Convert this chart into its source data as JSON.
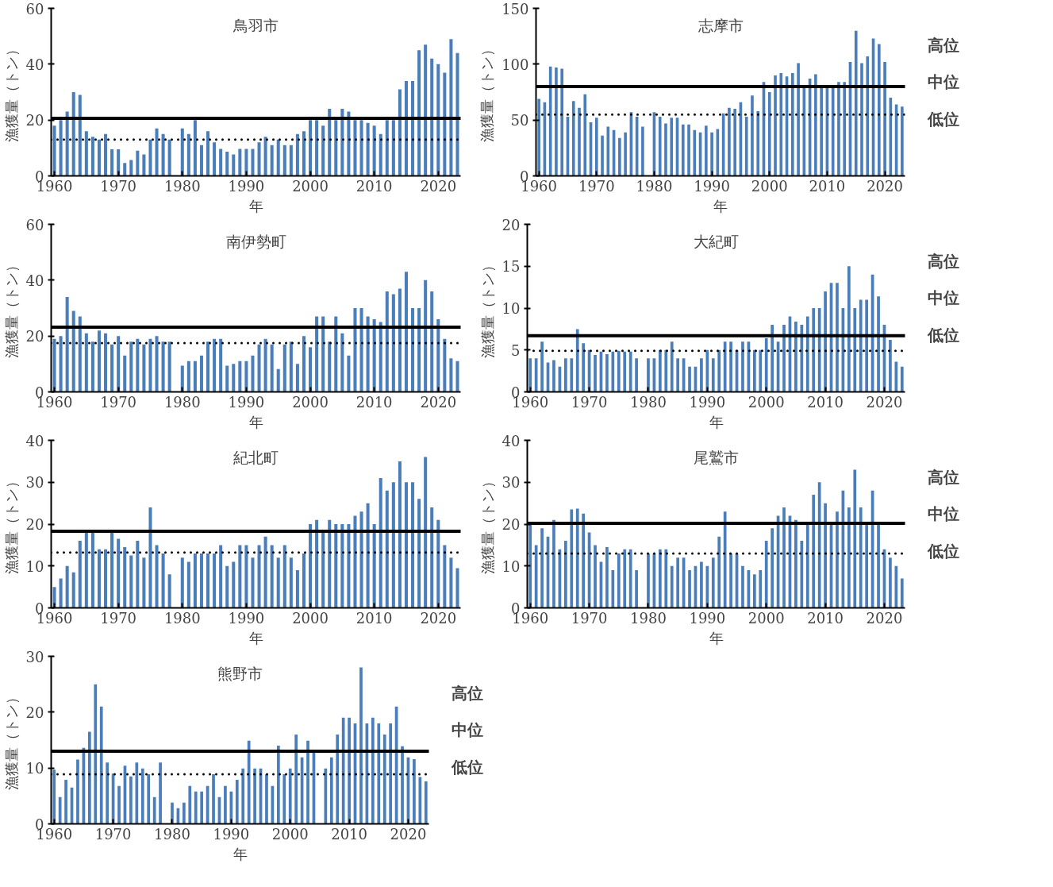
{
  "chart_data": [
    {
      "type": "bar",
      "title": "鳥羽市",
      "xlabel": "年",
      "ylabel": "漁獲量（トン）",
      "color": "#4a7ebb",
      "xlim": [
        1959.5,
        2023.5
      ],
      "xticks": [
        1960,
        1970,
        1980,
        1990,
        2000,
        2010,
        2020
      ],
      "ylim": [
        0,
        60
      ],
      "yticks": [
        0,
        20,
        40,
        60
      ],
      "x": [
        1960,
        1961,
        1962,
        1963,
        1964,
        1965,
        1966,
        1967,
        1968,
        1969,
        1970,
        1971,
        1972,
        1973,
        1974,
        1975,
        1976,
        1977,
        1978,
        1979,
        1980,
        1981,
        1982,
        1983,
        1984,
        1985,
        1986,
        1987,
        1988,
        1989,
        1990,
        1991,
        1992,
        1993,
        1994,
        1995,
        1996,
        1997,
        1998,
        1999,
        2000,
        2001,
        2002,
        2003,
        2004,
        2005,
        2006,
        2007,
        2008,
        2009,
        2010,
        2011,
        2012,
        2013,
        2014,
        2015,
        2016,
        2017,
        2018,
        2019,
        2020,
        2021,
        2022,
        2023
      ],
      "values": [
        18,
        20,
        23,
        30,
        29,
        16,
        14,
        13,
        15,
        9.5,
        9.5,
        4.6,
        5.7,
        9,
        7.7,
        13,
        17,
        15,
        13,
        null,
        17,
        15,
        20,
        11,
        16,
        12,
        9.7,
        8.7,
        7.7,
        9.7,
        9.7,
        9.7,
        12,
        14,
        11,
        13,
        11,
        11,
        15,
        16,
        20,
        20,
        18,
        24,
        20,
        24,
        23,
        20,
        20,
        19,
        18,
        15,
        20,
        20,
        31,
        34,
        34,
        45,
        47,
        42,
        40,
        37,
        49,
        44
      ],
      "ref_lines": [
        {
          "axis": "y",
          "value": 20.6,
          "line_style": "solid",
          "color": "#000000"
        },
        {
          "axis": "y",
          "value": 13,
          "line_style": "dotted",
          "color": "#000000"
        }
      ]
    },
    {
      "type": "bar",
      "title": "志摩市",
      "xlabel": "年",
      "ylabel": "漁獲量（トン）",
      "color": "#4a7ebb",
      "xlim": [
        1959.5,
        2023.5
      ],
      "xticks": [
        1960,
        1970,
        1980,
        1990,
        2000,
        2010,
        2020
      ],
      "ylim": [
        0,
        150
      ],
      "yticks": [
        0,
        50,
        100,
        150
      ],
      "x": [
        1960,
        1961,
        1962,
        1963,
        1964,
        1965,
        1966,
        1967,
        1968,
        1969,
        1970,
        1971,
        1972,
        1973,
        1974,
        1975,
        1976,
        1977,
        1978,
        1979,
        1980,
        1981,
        1982,
        1983,
        1984,
        1985,
        1986,
        1987,
        1988,
        1989,
        1990,
        1991,
        1992,
        1993,
        1994,
        1995,
        1996,
        1997,
        1998,
        1999,
        2000,
        2001,
        2002,
        2003,
        2004,
        2005,
        2006,
        2007,
        2008,
        2009,
        2010,
        2011,
        2012,
        2013,
        2014,
        2015,
        2016,
        2017,
        2018,
        2019,
        2020,
        2021,
        2022,
        2023
      ],
      "values": [
        69,
        66,
        98,
        97,
        96,
        53,
        67,
        61,
        73,
        48,
        52,
        36,
        44,
        41,
        34,
        39,
        57,
        53,
        44,
        null,
        57,
        53,
        47,
        52,
        52,
        46,
        46,
        41,
        39,
        45,
        39,
        42,
        56,
        61,
        60,
        66,
        53,
        72,
        58,
        84,
        75,
        90,
        92,
        89,
        92,
        101,
        80,
        87,
        91,
        80,
        80,
        80,
        84,
        84,
        102,
        130,
        101,
        107,
        123,
        118,
        102,
        70,
        64,
        62
      ],
      "ref_lines": [
        {
          "axis": "y",
          "value": 80,
          "line_style": "solid",
          "color": "#000000"
        },
        {
          "axis": "y",
          "value": 55,
          "line_style": "dotted",
          "color": "#000000"
        }
      ],
      "annotations": [
        "高位",
        "中位",
        "低位"
      ]
    },
    {
      "type": "bar",
      "title": "南伊勢町",
      "xlabel": "年",
      "ylabel": "漁獲量（トン）",
      "color": "#4a7ebb",
      "xlim": [
        1959.5,
        2023.5
      ],
      "xticks": [
        1960,
        1970,
        1980,
        1990,
        2000,
        2010,
        2020
      ],
      "ylim": [
        0,
        60
      ],
      "yticks": [
        0,
        20,
        40,
        60
      ],
      "x": [
        1960,
        1961,
        1962,
        1963,
        1964,
        1965,
        1966,
        1967,
        1968,
        1969,
        1970,
        1971,
        1972,
        1973,
        1974,
        1975,
        1976,
        1977,
        1978,
        1979,
        1980,
        1981,
        1982,
        1983,
        1984,
        1985,
        1986,
        1987,
        1988,
        1989,
        1990,
        1991,
        1992,
        1993,
        1994,
        1995,
        1996,
        1997,
        1998,
        1999,
        2000,
        2001,
        2002,
        2003,
        2004,
        2005,
        2006,
        2007,
        2008,
        2009,
        2010,
        2011,
        2012,
        2013,
        2014,
        2015,
        2016,
        2017,
        2018,
        2019,
        2020,
        2021,
        2022,
        2023
      ],
      "values": [
        19,
        20,
        34,
        29,
        27,
        21,
        18,
        22,
        21,
        17,
        20,
        13,
        18,
        19,
        17,
        19,
        20,
        18,
        18,
        null,
        9.4,
        11,
        11,
        13,
        18,
        19,
        19,
        9.4,
        10,
        11,
        11,
        13,
        17,
        19,
        17,
        8.2,
        17,
        18,
        10,
        20,
        16,
        27,
        27,
        18,
        27,
        21,
        13,
        30,
        30,
        27,
        26,
        25,
        36,
        35,
        37,
        43,
        30,
        30,
        40,
        36,
        26,
        19,
        12,
        11
      ],
      "ref_lines": [
        {
          "axis": "y",
          "value": 23.2,
          "line_style": "solid",
          "color": "#000000"
        },
        {
          "axis": "y",
          "value": 17.5,
          "line_style": "dotted",
          "color": "#000000"
        }
      ]
    },
    {
      "type": "bar",
      "title": "大紀町",
      "xlabel": "年",
      "ylabel": "漁獲量（トン）",
      "color": "#4a7ebb",
      "xlim": [
        1959.5,
        2023.5
      ],
      "xticks": [
        1960,
        1970,
        1980,
        1990,
        2000,
        2010,
        2020
      ],
      "ylim": [
        0,
        20
      ],
      "yticks": [
        0,
        5,
        10,
        15,
        20
      ],
      "x": [
        1960,
        1961,
        1962,
        1963,
        1964,
        1965,
        1966,
        1967,
        1968,
        1969,
        1970,
        1971,
        1972,
        1973,
        1974,
        1975,
        1976,
        1977,
        1978,
        1979,
        1980,
        1981,
        1982,
        1983,
        1984,
        1985,
        1986,
        1987,
        1988,
        1989,
        1990,
        1991,
        1992,
        1993,
        1994,
        1995,
        1996,
        1997,
        1998,
        1999,
        2000,
        2001,
        2002,
        2003,
        2004,
        2005,
        2006,
        2007,
        2008,
        2009,
        2010,
        2011,
        2012,
        2013,
        2014,
        2015,
        2016,
        2017,
        2018,
        2019,
        2020,
        2021,
        2022,
        2023
      ],
      "values": [
        4,
        4,
        6,
        3.5,
        3.8,
        3,
        4,
        4,
        7.5,
        5.8,
        5,
        4.4,
        4.8,
        4.5,
        4.8,
        4.9,
        4.8,
        4.8,
        4,
        null,
        4,
        4,
        5,
        5,
        6,
        4,
        4,
        3,
        3,
        4,
        5,
        4,
        5,
        6,
        6,
        5,
        6,
        6,
        5,
        5,
        6.4,
        8,
        6,
        8,
        9,
        8.4,
        8,
        9,
        10,
        10,
        12,
        13,
        13,
        10,
        15,
        10,
        11,
        11,
        14,
        11.4,
        8,
        6.2,
        3.6,
        3
      ],
      "ref_lines": [
        {
          "axis": "y",
          "value": 6.7,
          "line_style": "solid",
          "color": "#000000"
        },
        {
          "axis": "y",
          "value": 4.9,
          "line_style": "dotted",
          "color": "#000000"
        }
      ],
      "annotations": [
        "高位",
        "中位",
        "低位"
      ]
    },
    {
      "type": "bar",
      "title": "紀北町",
      "xlabel": "年",
      "ylabel": "漁獲量（トン）",
      "color": "#4a7ebb",
      "xlim": [
        1959.5,
        2023.5
      ],
      "xticks": [
        1960,
        1970,
        1980,
        1990,
        2000,
        2010,
        2020
      ],
      "ylim": [
        0,
        40
      ],
      "yticks": [
        0,
        10,
        20,
        30,
        40
      ],
      "x": [
        1960,
        1961,
        1962,
        1963,
        1964,
        1965,
        1966,
        1967,
        1968,
        1969,
        1970,
        1971,
        1972,
        1973,
        1974,
        1975,
        1976,
        1977,
        1978,
        1979,
        1980,
        1981,
        1982,
        1983,
        1984,
        1985,
        1986,
        1987,
        1988,
        1989,
        1990,
        1991,
        1992,
        1993,
        1994,
        1995,
        1996,
        1997,
        1998,
        1999,
        2000,
        2001,
        2002,
        2003,
        2004,
        2005,
        2006,
        2007,
        2008,
        2009,
        2010,
        2011,
        2012,
        2013,
        2014,
        2015,
        2016,
        2017,
        2018,
        2019,
        2020,
        2021,
        2022,
        2023
      ],
      "values": [
        5,
        7,
        10,
        8.5,
        16,
        18,
        18,
        14,
        14,
        18,
        16.5,
        14.5,
        12.5,
        16,
        12,
        24,
        15,
        13,
        8,
        null,
        12,
        11,
        13,
        13,
        13,
        13,
        15,
        10,
        11,
        15,
        15,
        12,
        15,
        17,
        15,
        12,
        15,
        12,
        9,
        13,
        20,
        21,
        18,
        21,
        20,
        20,
        20,
        22,
        23,
        25,
        20,
        31,
        28,
        30,
        35,
        30,
        30,
        26,
        36,
        24,
        21,
        15,
        12,
        9.5
      ],
      "ref_lines": [
        {
          "axis": "y",
          "value": 18.3,
          "line_style": "solid",
          "color": "#000000"
        },
        {
          "axis": "y",
          "value": 13.2,
          "line_style": "dotted",
          "color": "#000000"
        }
      ]
    },
    {
      "type": "bar",
      "title": "尾鷲市",
      "xlabel": "年",
      "ylabel": "漁獲量（トン）",
      "color": "#4a7ebb",
      "xlim": [
        1959.5,
        2023.5
      ],
      "xticks": [
        1960,
        1970,
        1980,
        1990,
        2000,
        2010,
        2020
      ],
      "ylim": [
        0,
        40
      ],
      "yticks": [
        0,
        10,
        20,
        30,
        40
      ],
      "x": [
        1960,
        1961,
        1962,
        1963,
        1964,
        1965,
        1966,
        1967,
        1968,
        1969,
        1970,
        1971,
        1972,
        1973,
        1974,
        1975,
        1976,
        1977,
        1978,
        1979,
        1980,
        1981,
        1982,
        1983,
        1984,
        1985,
        1986,
        1987,
        1988,
        1989,
        1990,
        1991,
        1992,
        1993,
        1994,
        1995,
        1996,
        1997,
        1998,
        1999,
        2000,
        2001,
        2002,
        2003,
        2004,
        2005,
        2006,
        2007,
        2008,
        2009,
        2010,
        2011,
        2012,
        2013,
        2014,
        2015,
        2016,
        2017,
        2018,
        2019,
        2020,
        2021,
        2022,
        2023
      ],
      "values": [
        20,
        15,
        19,
        17,
        21,
        14,
        16,
        23.5,
        23.7,
        22.5,
        18,
        15,
        11,
        14.5,
        9,
        13,
        14,
        14,
        9,
        null,
        13,
        13,
        14,
        14,
        10,
        12,
        12,
        9,
        10,
        11,
        10,
        12,
        17,
        23,
        13,
        13,
        10,
        9,
        8,
        9,
        16,
        19,
        22,
        24,
        22,
        21,
        16,
        20,
        27,
        30,
        25,
        20,
        23,
        28,
        24,
        33,
        24,
        20,
        28,
        20,
        14,
        12,
        10,
        7
      ],
      "ref_lines": [
        {
          "axis": "y",
          "value": 20.2,
          "line_style": "solid",
          "color": "#000000"
        },
        {
          "axis": "y",
          "value": 13,
          "line_style": "dotted",
          "color": "#000000"
        }
      ],
      "annotations": [
        "高位",
        "中位",
        "低位"
      ]
    },
    {
      "type": "bar",
      "title": "熊野市",
      "xlabel": "年",
      "ylabel": "漁獲量（トン）",
      "color": "#4a7ebb",
      "xlim": [
        1959.5,
        2023.5
      ],
      "xticks": [
        1960,
        1970,
        1980,
        1990,
        2000,
        2010,
        2020
      ],
      "ylim": [
        0,
        30
      ],
      "yticks": [
        0,
        10,
        20,
        30
      ],
      "x": [
        1960,
        1961,
        1962,
        1963,
        1964,
        1965,
        1966,
        1967,
        1968,
        1969,
        1970,
        1971,
        1972,
        1973,
        1974,
        1975,
        1976,
        1977,
        1978,
        1979,
        1980,
        1981,
        1982,
        1983,
        1984,
        1985,
        1986,
        1987,
        1988,
        1989,
        1990,
        1991,
        1992,
        1993,
        1994,
        1995,
        1996,
        1997,
        1998,
        1999,
        2000,
        2001,
        2002,
        2003,
        2004,
        2005,
        2006,
        2007,
        2008,
        2009,
        2010,
        2011,
        2012,
        2013,
        2014,
        2015,
        2016,
        2017,
        2018,
        2019,
        2020,
        2021,
        2022,
        2023
      ],
      "values": [
        9.7,
        4.8,
        7.9,
        6.5,
        11.5,
        13.6,
        16.5,
        25,
        21,
        11,
        9,
        6.8,
        10.4,
        8.5,
        11,
        9.9,
        8.9,
        4.8,
        11,
        null,
        3.8,
        2.8,
        3.8,
        6.8,
        5.8,
        5.8,
        6.8,
        8.9,
        4.8,
        6.8,
        5.8,
        7.9,
        9.9,
        14.9,
        9.9,
        9.9,
        8.9,
        6.8,
        14,
        8.9,
        9.9,
        16,
        11.9,
        14.9,
        13,
        null,
        9.9,
        11.9,
        16,
        19,
        19,
        18,
        28,
        18,
        19,
        18,
        16,
        18,
        21,
        13.9,
        11.9,
        11.6,
        8.4,
        7.6
      ],
      "ref_lines": [
        {
          "axis": "y",
          "value": 13,
          "line_style": "solid",
          "color": "#000000"
        },
        {
          "axis": "y",
          "value": 8.9,
          "line_style": "dotted",
          "color": "#000000"
        }
      ],
      "annotations": [
        "高位",
        "中位",
        "低位"
      ]
    }
  ]
}
